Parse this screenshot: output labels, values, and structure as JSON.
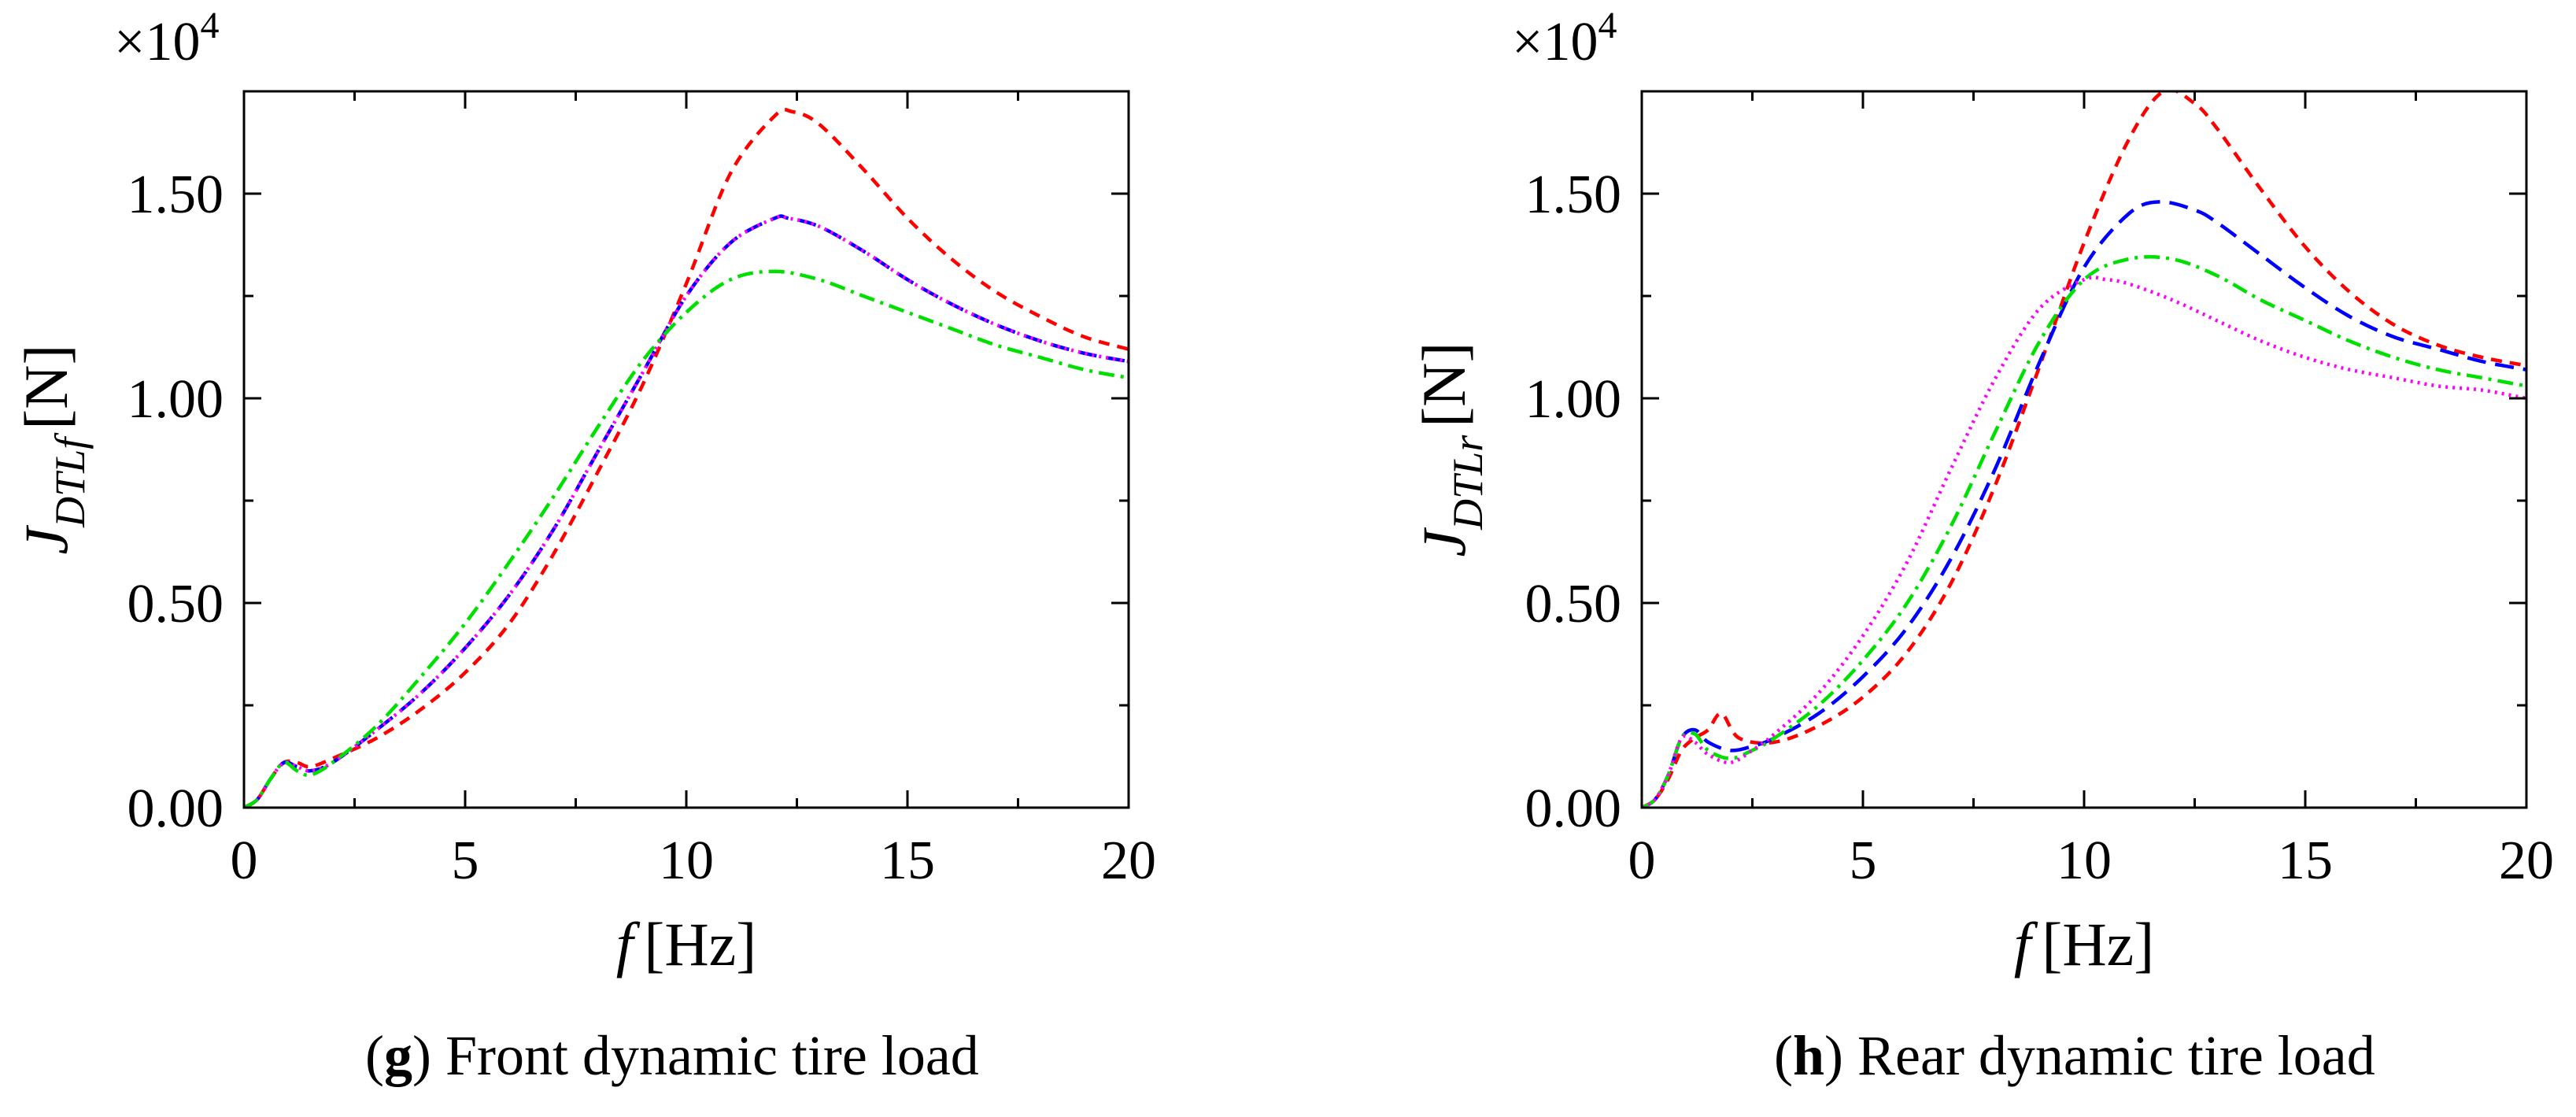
{
  "chart_data": [
    {
      "id": "g",
      "type": "line",
      "title": "",
      "multiplier": "×10",
      "multiplier_exp": "4",
      "ylabel_main": "J",
      "ylabel_sub": "DTLf",
      "ylabel_unit": "[N]",
      "xlabel_var": "f",
      "xlabel_unit": "[Hz]",
      "xlim": [
        0,
        20
      ],
      "ylim": [
        0,
        1.75
      ],
      "xticks": [
        0,
        5,
        10,
        15,
        20
      ],
      "xtick_labels": [
        "0",
        "5",
        "10",
        "15",
        "20"
      ],
      "yticks": [
        0,
        0.5,
        1.0,
        1.5
      ],
      "ytick_labels": [
        "0.00",
        "0.50",
        "1.00",
        "1.50"
      ],
      "caption_letter": "g",
      "caption_text": ") Front dynamic tire load",
      "caption_open": "(",
      "series": [
        {
          "name": "red dashed",
          "color": "#ff0000",
          "dash": "14,10",
          "x": [
            0,
            0.3,
            0.6,
            0.9,
            1.2,
            1.5,
            2,
            3,
            4,
            5,
            6,
            7,
            8,
            9,
            10,
            11,
            12,
            12.4,
            13,
            14,
            15,
            16,
            17,
            18,
            19,
            20
          ],
          "y": [
            0,
            0.02,
            0.07,
            0.11,
            0.11,
            0.1,
            0.12,
            0.17,
            0.24,
            0.33,
            0.45,
            0.62,
            0.82,
            1.03,
            1.28,
            1.55,
            1.69,
            1.7,
            1.67,
            1.56,
            1.44,
            1.34,
            1.26,
            1.2,
            1.15,
            1.12
          ]
        },
        {
          "name": "blue dashed",
          "color": "#0000ff",
          "dash": "24,12",
          "x": [
            0,
            0.3,
            0.6,
            0.9,
            1.2,
            1.5,
            2,
            3,
            4,
            5,
            6,
            7,
            8,
            9,
            10,
            11,
            12,
            12.3,
            13,
            14,
            15,
            16,
            17,
            18,
            19,
            20
          ],
          "y": [
            0,
            0.02,
            0.07,
            0.11,
            0.1,
            0.09,
            0.11,
            0.19,
            0.28,
            0.39,
            0.52,
            0.68,
            0.87,
            1.06,
            1.25,
            1.38,
            1.44,
            1.44,
            1.42,
            1.36,
            1.29,
            1.23,
            1.18,
            1.14,
            1.11,
            1.09
          ]
        },
        {
          "name": "magenta dotted",
          "color": "#ff00ff",
          "dash": "3,6",
          "x": [
            0,
            0.3,
            0.6,
            0.9,
            1.2,
            1.5,
            2,
            3,
            4,
            5,
            6,
            7,
            8,
            9,
            10,
            11,
            12,
            12.3,
            13,
            14,
            15,
            16,
            17,
            18,
            19,
            20
          ],
          "y": [
            0,
            0.02,
            0.07,
            0.11,
            0.1,
            0.09,
            0.11,
            0.19,
            0.28,
            0.39,
            0.52,
            0.68,
            0.87,
            1.06,
            1.25,
            1.38,
            1.44,
            1.44,
            1.42,
            1.36,
            1.29,
            1.23,
            1.18,
            1.14,
            1.11,
            1.09
          ]
        },
        {
          "name": "green dash-dot",
          "color": "#00e000",
          "dash": "20,8,4,8",
          "x": [
            0,
            0.3,
            0.6,
            0.9,
            1.2,
            1.5,
            2,
            3,
            4,
            5,
            6,
            7,
            8,
            9,
            10,
            11,
            12,
            13,
            14,
            15,
            16,
            17,
            18,
            19,
            20
          ],
          "y": [
            0,
            0.02,
            0.07,
            0.11,
            0.09,
            0.08,
            0.11,
            0.2,
            0.32,
            0.45,
            0.6,
            0.76,
            0.93,
            1.09,
            1.21,
            1.29,
            1.31,
            1.29,
            1.25,
            1.21,
            1.17,
            1.13,
            1.1,
            1.07,
            1.05
          ]
        }
      ]
    },
    {
      "id": "h",
      "type": "line",
      "title": "",
      "multiplier": "×10",
      "multiplier_exp": "4",
      "ylabel_main": "J",
      "ylabel_sub": "DTLr",
      "ylabel_unit": "[N]",
      "xlabel_var": "f",
      "xlabel_unit": "[Hz]",
      "xlim": [
        0,
        20
      ],
      "ylim": [
        0,
        1.75
      ],
      "xticks": [
        0,
        5,
        10,
        15,
        20
      ],
      "xtick_labels": [
        "0",
        "5",
        "10",
        "15",
        "20"
      ],
      "yticks": [
        0,
        0.5,
        1.0,
        1.5
      ],
      "ytick_labels": [
        "0.00",
        "0.50",
        "1.00",
        "1.50"
      ],
      "caption_letter": "h",
      "caption_text": ") Rear dynamic tire load",
      "caption_open": "(",
      "series": [
        {
          "name": "red dashed",
          "color": "#ff0000",
          "dash": "14,10",
          "x": [
            0,
            0.3,
            0.6,
            0.9,
            1.2,
            1.5,
            1.8,
            2.2,
            3,
            4,
            5,
            6,
            7,
            8,
            9,
            10,
            11,
            11.8,
            12.5,
            13,
            14,
            15,
            16,
            17,
            18,
            19,
            20
          ],
          "y": [
            0,
            0.02,
            0.07,
            0.14,
            0.17,
            0.19,
            0.23,
            0.17,
            0.16,
            0.2,
            0.27,
            0.38,
            0.55,
            0.79,
            1.08,
            1.38,
            1.63,
            1.75,
            1.72,
            1.66,
            1.51,
            1.37,
            1.26,
            1.18,
            1.13,
            1.1,
            1.08
          ]
        },
        {
          "name": "blue dashed",
          "color": "#0000ff",
          "dash": "24,12",
          "x": [
            0,
            0.3,
            0.6,
            0.9,
            1.2,
            1.5,
            2,
            2.5,
            3,
            4,
            5,
            6,
            7,
            8,
            9,
            10,
            11,
            11.7,
            12.5,
            13,
            14,
            15,
            16,
            17,
            18,
            19,
            20
          ],
          "y": [
            0,
            0.02,
            0.08,
            0.17,
            0.19,
            0.16,
            0.14,
            0.15,
            0.17,
            0.23,
            0.32,
            0.44,
            0.61,
            0.83,
            1.09,
            1.32,
            1.45,
            1.48,
            1.46,
            1.43,
            1.35,
            1.27,
            1.2,
            1.15,
            1.12,
            1.09,
            1.07
          ]
        },
        {
          "name": "green dash-dot",
          "color": "#00e000",
          "dash": "20,8,4,8",
          "x": [
            0,
            0.3,
            0.6,
            0.9,
            1.2,
            1.5,
            2,
            2.5,
            3,
            4,
            5,
            6,
            7,
            8,
            9,
            10,
            11,
            12,
            13,
            14,
            15,
            16,
            17,
            18,
            19,
            20
          ],
          "y": [
            0,
            0.02,
            0.08,
            0.17,
            0.18,
            0.14,
            0.12,
            0.14,
            0.17,
            0.25,
            0.36,
            0.5,
            0.69,
            0.92,
            1.14,
            1.29,
            1.34,
            1.34,
            1.3,
            1.24,
            1.19,
            1.14,
            1.1,
            1.07,
            1.05,
            1.03
          ]
        },
        {
          "name": "magenta dotted",
          "color": "#ff00ff",
          "dash": "3,6",
          "x": [
            0,
            0.3,
            0.6,
            0.9,
            1.2,
            1.5,
            2,
            2.5,
            3,
            4,
            5,
            6,
            7,
            8,
            9,
            10,
            10.5,
            11,
            12,
            13,
            14,
            15,
            16,
            17,
            18,
            19,
            20
          ],
          "y": [
            0,
            0.02,
            0.08,
            0.17,
            0.16,
            0.13,
            0.11,
            0.14,
            0.18,
            0.28,
            0.42,
            0.6,
            0.83,
            1.05,
            1.22,
            1.29,
            1.29,
            1.28,
            1.24,
            1.19,
            1.14,
            1.1,
            1.07,
            1.05,
            1.03,
            1.02,
            1.0
          ]
        }
      ]
    }
  ]
}
